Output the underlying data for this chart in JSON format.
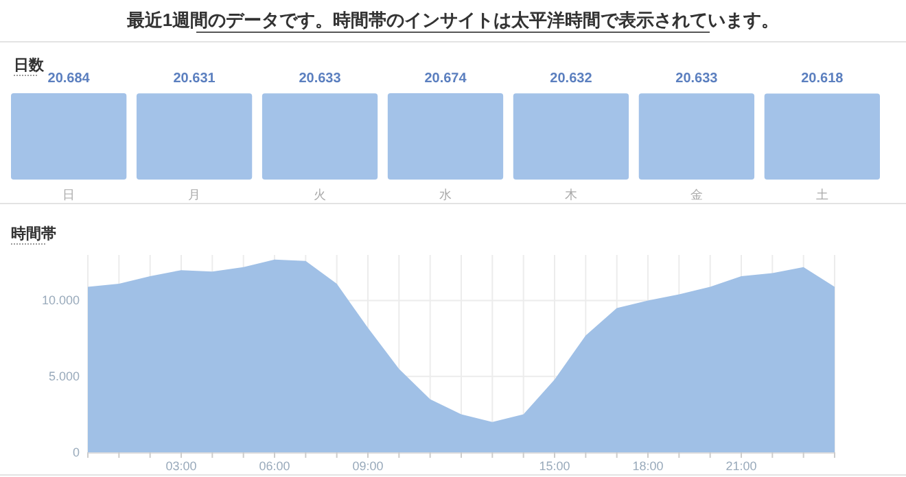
{
  "chart_data": [
    {
      "type": "bar",
      "title": "日数",
      "annotations": [
        "最近1週間のデータです。時間帯のインサイトは太平洋時間で表示されています。"
      ],
      "categories": [
        "日",
        "月",
        "火",
        "水",
        "木",
        "金",
        "土"
      ],
      "values": [
        20.684,
        20.631,
        20.633,
        20.674,
        20.632,
        20.633,
        20.618
      ],
      "color": "#a3c2e8",
      "data_labels": true
    },
    {
      "type": "area",
      "title": "時間帯",
      "x": [
        0,
        1,
        2,
        3,
        4,
        5,
        6,
        7,
        8,
        9,
        10,
        11,
        12,
        13,
        14,
        15,
        16,
        17,
        18,
        19,
        20,
        21,
        22,
        23,
        24
      ],
      "values": [
        10900,
        11100,
        11600,
        12000,
        11900,
        12200,
        12700,
        12600,
        11100,
        8200,
        5500,
        3500,
        2500,
        2000,
        2500,
        4800,
        7700,
        9500,
        10000,
        10400,
        10900,
        11600,
        11800,
        12200,
        10900
      ],
      "color": "#a0c0e6",
      "xlim": [
        0,
        24
      ],
      "ylim": [
        0,
        13000
      ],
      "xticks": [
        {
          "value": 0,
          "label": null
        },
        {
          "value": 1,
          "label": null
        },
        {
          "value": 2,
          "label": null
        },
        {
          "value": 3,
          "label": "03:00"
        },
        {
          "value": 4,
          "label": null
        },
        {
          "value": 5,
          "label": null
        },
        {
          "value": 6,
          "label": "06:00"
        },
        {
          "value": 7,
          "label": null
        },
        {
          "value": 8,
          "label": null
        },
        {
          "value": 9,
          "label": "09:00"
        },
        {
          "value": 10,
          "label": null
        },
        {
          "value": 11,
          "label": null
        },
        {
          "value": 12,
          "label": null
        },
        {
          "value": 13,
          "label": null
        },
        {
          "value": 14,
          "label": null
        },
        {
          "value": 15,
          "label": "15:00"
        },
        {
          "value": 16,
          "label": null
        },
        {
          "value": 17,
          "label": null
        },
        {
          "value": 18,
          "label": "18:00"
        },
        {
          "value": 19,
          "label": null
        },
        {
          "value": 20,
          "label": null
        },
        {
          "value": 21,
          "label": "21:00"
        },
        {
          "value": 22,
          "label": null
        },
        {
          "value": 23,
          "label": null
        },
        {
          "value": 24,
          "label": null
        }
      ],
      "yticks": [
        {
          "value": 0,
          "label": "0"
        },
        {
          "value": 5000,
          "label": "5.000"
        },
        {
          "value": 10000,
          "label": "10.000"
        }
      ],
      "grid": true
    }
  ]
}
